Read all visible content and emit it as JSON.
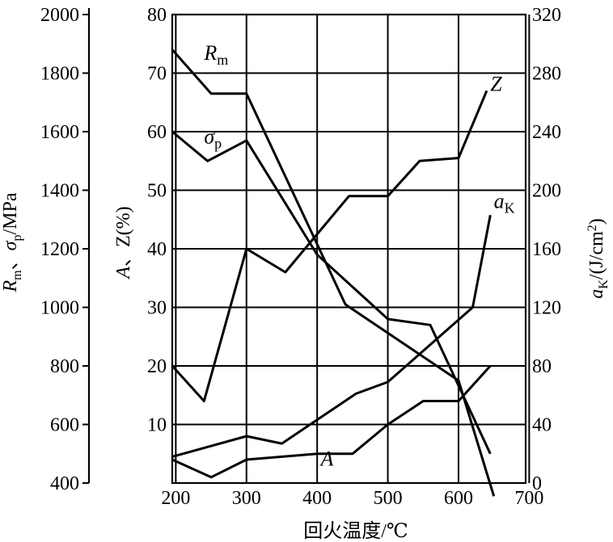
{
  "chart_data": {
    "type": "line",
    "xlabel": "回火温度/℃",
    "x_ticks": [
      200,
      300,
      400,
      500,
      600,
      700
    ],
    "xlim": [
      195,
      695
    ],
    "axes": {
      "left_outer": {
        "label": "Rm、σp/MPa",
        "lim": [
          400,
          2000
        ],
        "ticks": [
          400,
          600,
          800,
          1000,
          1200,
          1400,
          1600,
          1800,
          2000
        ]
      },
      "left_inner": {
        "label": "A、Z(%)",
        "lim": [
          0,
          80
        ],
        "ticks": [
          10,
          20,
          30,
          40,
          50,
          60,
          70,
          80
        ]
      },
      "right": {
        "label": "aK/(J/cm2)",
        "lim": [
          0,
          320
        ],
        "ticks": [
          0,
          40,
          80,
          120,
          160,
          200,
          240,
          280,
          320
        ]
      }
    },
    "grid": true,
    "series": [
      {
        "name": "Rm",
        "axis": "left_outer",
        "labelAt": [
          240,
          1845
        ],
        "x": [
          195,
          250,
          300,
          440,
          600,
          650
        ],
        "y": [
          1880,
          1730,
          1730,
          1010,
          750,
          355
        ]
      },
      {
        "name": "σp",
        "axis": "left_outer",
        "labelAt": [
          240,
          1560
        ],
        "x": [
          195,
          245,
          300,
          400,
          500,
          560,
          645
        ],
        "y": [
          1600,
          1500,
          1570,
          1180,
          960,
          940,
          500
        ]
      },
      {
        "name": "Z",
        "axis": "left_inner",
        "labelAt": [
          645,
          67
        ],
        "x": [
          195,
          240,
          300,
          355,
          445,
          500,
          545,
          600,
          640
        ],
        "y": [
          20,
          14,
          40,
          36,
          49,
          49,
          55,
          55.5,
          67
        ]
      },
      {
        "name": "A",
        "axis": "left_inner",
        "labelAt": [
          405,
          3
        ],
        "x": [
          195,
          250,
          300,
          400,
          450,
          500,
          550,
          600,
          645
        ],
        "y": [
          4,
          1,
          4,
          5,
          5,
          10,
          14,
          14,
          20
        ]
      },
      {
        "name": "aK",
        "axis": "right",
        "labelAt": [
          650,
          188
        ],
        "x": [
          195,
          300,
          350,
          455,
          500,
          620,
          645
        ],
        "y": [
          18,
          32,
          27,
          61,
          69,
          120,
          183
        ]
      }
    ]
  }
}
